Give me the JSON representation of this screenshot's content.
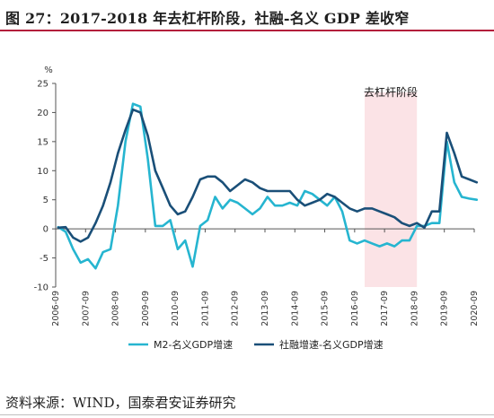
{
  "title": "图 27：2017-2018 年去杠杆阶段，社融-名义 GDP 差收窄",
  "source": "资料来源：WIND，国泰君安证券研究",
  "chart_data": {
    "type": "line",
    "yunit": "%",
    "ylim": [
      -10,
      25
    ],
    "yticks": [
      -10,
      -5,
      0,
      5,
      10,
      15,
      20,
      25
    ],
    "xlim": [
      2006.667,
      2020.667
    ],
    "xticks": [
      "2006-09",
      "2007-09",
      "2008-09",
      "2009-09",
      "2010-09",
      "2011-09",
      "2012-09",
      "2013-09",
      "2014-09",
      "2015-09",
      "2016-09",
      "2017-09",
      "2018-09",
      "2019-09",
      "2020-09"
    ],
    "annotation": {
      "text": "去杠杆阶段",
      "x_start": 2017.0,
      "x_end": 2018.75
    },
    "legend_position": "bottom",
    "series": [
      {
        "name": "M2-名义GDP增速",
        "color": "#26b5d0",
        "x": [
          2006.75,
          2007.0,
          2007.25,
          2007.5,
          2007.75,
          2008.0,
          2008.25,
          2008.5,
          2008.75,
          2009.0,
          2009.25,
          2009.5,
          2009.75,
          2010.0,
          2010.25,
          2010.5,
          2010.75,
          2011.0,
          2011.25,
          2011.5,
          2011.75,
          2012.0,
          2012.25,
          2012.5,
          2012.75,
          2013.0,
          2013.25,
          2013.5,
          2013.75,
          2014.0,
          2014.25,
          2014.5,
          2014.75,
          2015.0,
          2015.25,
          2015.5,
          2015.75,
          2016.0,
          2016.25,
          2016.5,
          2016.75,
          2017.0,
          2017.25,
          2017.5,
          2017.75,
          2018.0,
          2018.25,
          2018.5,
          2018.75,
          2019.0,
          2019.25,
          2019.5,
          2019.75,
          2020.0,
          2020.25,
          2020.5,
          2020.75
        ],
        "values": [
          0.3,
          -0.5,
          -3.5,
          -5.8,
          -5.2,
          -6.8,
          -4.0,
          -3.5,
          4.0,
          15.0,
          21.5,
          21.0,
          12.0,
          0.5,
          0.5,
          1.5,
          -3.5,
          -2.0,
          -6.5,
          0.5,
          1.5,
          5.5,
          3.5,
          5.0,
          4.5,
          3.5,
          2.5,
          3.5,
          5.5,
          4.0,
          4.0,
          4.5,
          4.0,
          6.5,
          6.0,
          5.0,
          4.0,
          5.5,
          3.0,
          -2.0,
          -2.5,
          -2.0,
          -2.5,
          -3.0,
          -2.5,
          -3.0,
          -2.0,
          -2.0,
          0.5,
          0.5,
          1.0,
          1.0,
          15.0,
          8.0,
          5.5,
          5.2,
          5.0
        ]
      },
      {
        "name": "社融增速-名义GDP增速",
        "color": "#1a4f78",
        "x": [
          2006.75,
          2007.0,
          2007.25,
          2007.5,
          2007.75,
          2008.0,
          2008.25,
          2008.5,
          2008.75,
          2009.0,
          2009.25,
          2009.5,
          2009.75,
          2010.0,
          2010.25,
          2010.5,
          2010.75,
          2011.0,
          2011.25,
          2011.5,
          2011.75,
          2012.0,
          2012.25,
          2012.5,
          2012.75,
          2013.0,
          2013.25,
          2013.5,
          2013.75,
          2014.0,
          2014.25,
          2014.5,
          2014.75,
          2015.0,
          2015.25,
          2015.5,
          2015.75,
          2016.0,
          2016.25,
          2016.5,
          2016.75,
          2017.0,
          2017.25,
          2017.5,
          2017.75,
          2018.0,
          2018.25,
          2018.5,
          2018.75,
          2019.0,
          2019.25,
          2019.5,
          2019.75,
          2020.0,
          2020.25,
          2020.5,
          2020.75
        ],
        "values": [
          0.2,
          0.3,
          -1.5,
          -2.2,
          -1.5,
          1.0,
          4.0,
          8.0,
          13.0,
          17.0,
          20.5,
          20.0,
          16.0,
          10.0,
          7.0,
          4.0,
          2.5,
          3.0,
          5.5,
          8.5,
          9.0,
          9.0,
          8.0,
          6.5,
          7.5,
          8.5,
          8.0,
          7.0,
          6.5,
          6.5,
          6.5,
          6.5,
          5.0,
          4.0,
          4.5,
          5.0,
          6.0,
          5.5,
          4.5,
          3.5,
          3.0,
          3.5,
          3.5,
          3.0,
          2.5,
          2.0,
          1.0,
          0.5,
          1.0,
          0.2,
          3.0,
          3.0,
          16.5,
          13.0,
          9.0,
          8.5,
          8.0
        ]
      }
    ]
  }
}
